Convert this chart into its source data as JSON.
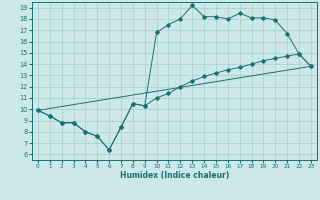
{
  "bg_color": "#cde8e8",
  "grid_color": "#aacccc",
  "line_color": "#1a7070",
  "xlabel": "Humidex (Indice chaleur)",
  "xlim": [
    -0.5,
    23.5
  ],
  "ylim": [
    5.5,
    19.5
  ],
  "xticks": [
    0,
    1,
    2,
    3,
    4,
    5,
    6,
    7,
    8,
    9,
    10,
    11,
    12,
    13,
    14,
    15,
    16,
    17,
    18,
    19,
    20,
    21,
    22,
    23
  ],
  "yticks": [
    6,
    7,
    8,
    9,
    10,
    11,
    12,
    13,
    14,
    15,
    16,
    17,
    18,
    19
  ],
  "line1_x": [
    0,
    1,
    2,
    3,
    4,
    5,
    6,
    7,
    8,
    9,
    10,
    11,
    12,
    13,
    14,
    15,
    16,
    17,
    18,
    19,
    20,
    21,
    22,
    23
  ],
  "line1_y": [
    9.9,
    9.4,
    8.8,
    8.8,
    8.0,
    7.6,
    6.4,
    8.4,
    10.5,
    10.3,
    16.8,
    17.5,
    18.0,
    19.2,
    18.2,
    18.2,
    18.0,
    18.5,
    18.1,
    18.1,
    17.9,
    16.7,
    14.9,
    13.8
  ],
  "line2_x": [
    0,
    1,
    2,
    3,
    4,
    5,
    6,
    7,
    8,
    9,
    10,
    11,
    12,
    13,
    14,
    15,
    16,
    17,
    18,
    19,
    20,
    21,
    22,
    23
  ],
  "line2_y": [
    9.9,
    9.4,
    8.8,
    8.8,
    8.0,
    7.6,
    6.4,
    8.4,
    10.5,
    10.3,
    11.0,
    11.4,
    12.0,
    12.5,
    12.9,
    13.2,
    13.5,
    13.7,
    14.0,
    14.3,
    14.5,
    14.7,
    14.9,
    13.8
  ],
  "line3_x": [
    0,
    23
  ],
  "line3_y": [
    9.9,
    13.8
  ]
}
